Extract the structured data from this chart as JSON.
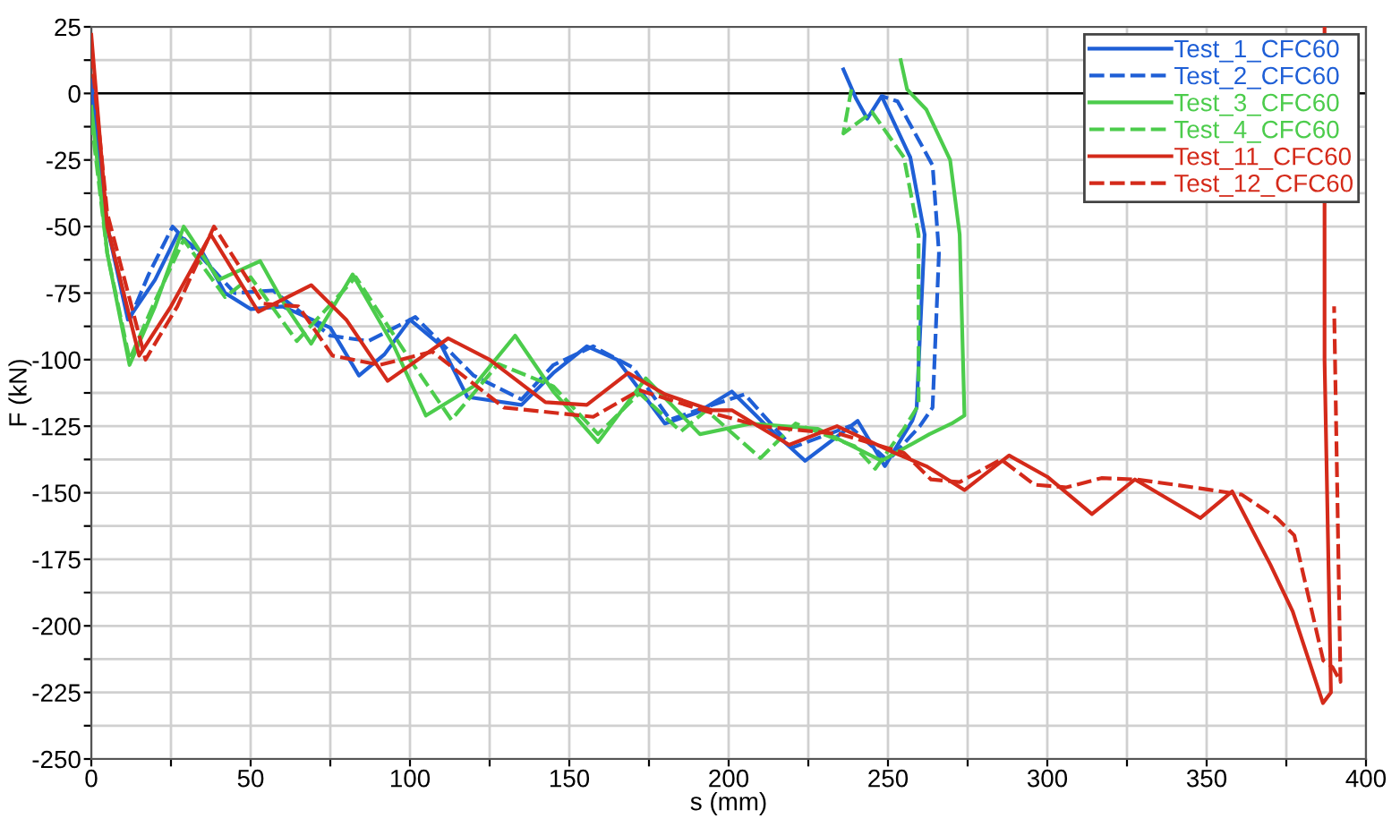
{
  "chart_data": {
    "type": "line",
    "xlabel": "s (mm)",
    "ylabel": "F (kN)",
    "xlim": [
      0,
      400
    ],
    "ylim": [
      -250,
      25
    ],
    "xticks": [
      0,
      {
        "value": 25,
        "label": null
      },
      50,
      {
        "value": 75,
        "label": null
      },
      100,
      {
        "value": 125,
        "label": null
      },
      150,
      {
        "value": 175,
        "label": null
      },
      200,
      {
        "value": 225,
        "label": null
      },
      250,
      {
        "value": 275,
        "label": null
      },
      300,
      {
        "value": 325,
        "label": null
      },
      350,
      {
        "value": 375,
        "label": null
      },
      400
    ],
    "yticks": [
      -250,
      {
        "value": -237.5,
        "label": null
      },
      -225,
      {
        "value": -212.5,
        "label": null
      },
      -200,
      {
        "value": -187.5,
        "label": null
      },
      -175,
      {
        "value": -162.5,
        "label": null
      },
      -150,
      {
        "value": -137.5,
        "label": null
      },
      -125,
      {
        "value": -112.5,
        "label": null
      },
      -100,
      {
        "value": -87.5,
        "label": null
      },
      -75,
      {
        "value": -62.5,
        "label": null
      },
      -50,
      {
        "value": -37.5,
        "label": null
      },
      -25,
      {
        "value": -12.5,
        "label": null
      },
      0,
      {
        "value": 12.5,
        "label": null
      },
      25
    ],
    "grid": true,
    "legend": "top right",
    "marker": "none",
    "ref_lines": [
      {
        "axis": "y",
        "value": 0,
        "label": null,
        "color": "#000000"
      }
    ],
    "series": [
      {
        "name": "Test_1_CFC60",
        "color": "#1f5fd6",
        "line_style": "solid",
        "x": [
          0,
          5,
          11.5,
          20,
          27,
          35,
          42,
          50,
          60,
          75,
          84,
          92,
          100,
          110,
          118,
          135,
          145,
          155.5,
          165,
          180,
          190,
          201,
          212,
          224,
          240.5,
          249,
          257.6,
          259,
          261.5,
          257,
          248,
          243.5,
          240,
          236
        ],
        "values": [
          5,
          -50,
          -85,
          -70,
          -53,
          -60,
          -75,
          -81,
          -80,
          -88,
          -106,
          -98,
          -85,
          -95,
          -114,
          -117,
          -105,
          -95,
          -100,
          -124,
          -120,
          -112,
          -125,
          -138,
          -123,
          -140,
          -123,
          -118,
          -53,
          -24,
          -1,
          -9.5,
          -2,
          9
        ]
      },
      {
        "name": "Test_2_CFC60",
        "color": "#1f5fd6",
        "line_style": "dashed",
        "x": [
          0,
          5,
          12,
          18,
          25.5,
          35,
          45,
          57,
          75,
          87,
          101.7,
          120,
          135,
          145,
          157.5,
          170,
          181.6,
          195,
          205,
          220,
          238,
          250,
          260,
          264,
          266,
          264,
          253,
          248
        ],
        "values": [
          0,
          -50,
          -85,
          -68,
          -50,
          -62,
          -75,
          -74,
          -91,
          -93,
          -84,
          -106,
          -115,
          -102,
          -95,
          -103,
          -122.5,
          -117,
          -113,
          -133,
          -125,
          -138,
          -125,
          -118,
          -60,
          -27,
          -3,
          -1
        ]
      },
      {
        "name": "Test_3_CFC60",
        "color": "#4ccc4c",
        "line_style": "solid",
        "x": [
          0,
          5,
          12,
          20,
          29,
          40,
          53,
          60,
          69,
          82,
          95,
          105,
          120,
          133,
          145,
          159,
          174,
          191,
          207,
          228,
          248,
          263,
          270,
          274,
          272.5,
          269.5,
          262,
          256,
          254
        ],
        "values": [
          -5,
          -60,
          -102,
          -80,
          -50,
          -70,
          -63,
          -78,
          -94,
          -68,
          -95,
          -121,
          -110,
          -91,
          -112,
          -131,
          -107,
          -128,
          -124,
          -126,
          -138,
          -128,
          -124,
          -121,
          -53,
          -25,
          -6,
          1.5,
          12.5
        ]
      },
      {
        "name": "Test_4_CFC60",
        "color": "#4ccc4c",
        "line_style": "dashed",
        "x": [
          0,
          5,
          12,
          20,
          29,
          42,
          50,
          64.5,
          83,
          100,
          113,
          127.7,
          145,
          159,
          172,
          185,
          193,
          210,
          221,
          239.5,
          246,
          255,
          259.6,
          259.6,
          255,
          245,
          236,
          238.5
        ],
        "values": [
          -10,
          -60,
          -100,
          -78,
          -55,
          -76.5,
          -69,
          -93,
          -69,
          -100,
          -122.6,
          -101.6,
          -110,
          -128,
          -112.6,
          -127,
          -119,
          -137,
          -124,
          -132.5,
          -141,
          -126,
          -117,
          -53,
          -24,
          -7,
          -15,
          1.5
        ]
      },
      {
        "name": "Test_11_CFC60",
        "color": "#d42a1a",
        "line_style": "solid",
        "x": [
          0,
          5,
          15,
          25,
          37.5,
          52.4,
          69,
          80,
          93,
          112,
          125,
          142.5,
          155.5,
          168.5,
          180,
          194.6,
          201,
          219,
          234,
          252,
          262,
          274,
          288,
          300,
          314,
          327.5,
          348,
          358,
          370,
          377,
          386.5,
          389,
          387,
          387
        ],
        "values": [
          22,
          -50,
          -98.5,
          -80,
          -53,
          -82,
          -72,
          -85,
          -108,
          -92,
          -100,
          -116,
          -117,
          -105,
          -113,
          -119,
          -119,
          -132,
          -125,
          -135,
          -140,
          -149,
          -136,
          -144,
          -158,
          -145,
          -159.5,
          -149.5,
          -177,
          -194.6,
          -229,
          -225,
          -100,
          25
        ]
      },
      {
        "name": "Test_12_CFC60",
        "color": "#d42a1a",
        "line_style": "dashed",
        "x": [
          0,
          5,
          17,
          27,
          38.5,
          54,
          65,
          75.7,
          90.5,
          107,
          129.5,
          157.5,
          172,
          194.6,
          210,
          235,
          255,
          263.5,
          272.5,
          285.5,
          296,
          306,
          317,
          328,
          346,
          361,
          372,
          377.5,
          386.6,
          389.5,
          392,
          391,
          390
        ],
        "values": [
          15,
          -45,
          -100,
          -80,
          -50,
          -79,
          -80,
          -98.5,
          -102,
          -97,
          -118,
          -121.5,
          -111.5,
          -120,
          -125,
          -128,
          -135,
          -145,
          -146,
          -137.5,
          -147,
          -148,
          -144.5,
          -145,
          -148,
          -150.7,
          -159.5,
          -166,
          -213,
          -215.5,
          -221,
          -150,
          -80
        ]
      }
    ]
  }
}
